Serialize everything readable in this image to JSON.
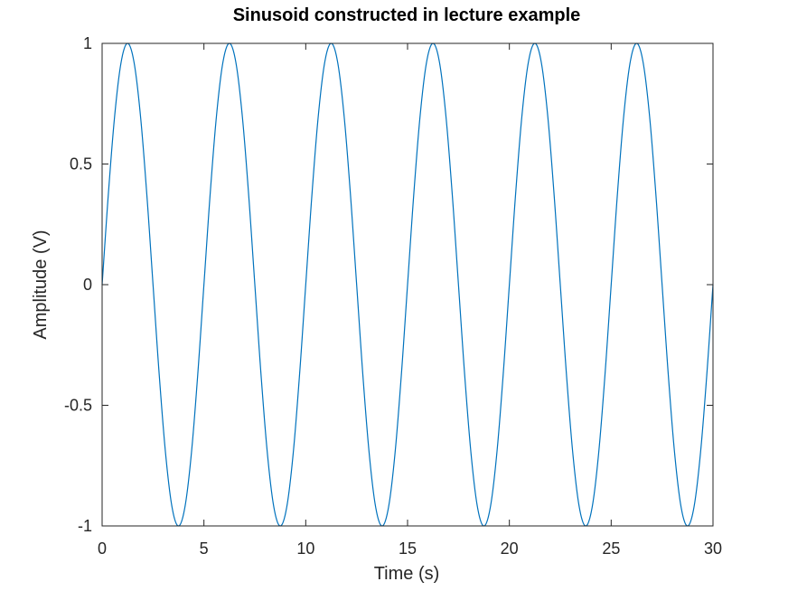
{
  "chart_data": {
    "type": "line",
    "title": "Sinusoid constructed in lecture example",
    "xlabel": "Time (s)",
    "ylabel": "Amplitude (V)",
    "xlim": [
      0,
      30
    ],
    "ylim": [
      -1,
      1
    ],
    "xticks": [
      0,
      5,
      10,
      15,
      20,
      25,
      30
    ],
    "xtick_labels": [
      "0",
      "5",
      "10",
      "15",
      "20",
      "25",
      "30"
    ],
    "yticks": [
      1,
      0.5,
      0,
      -0.5,
      -1
    ],
    "ytick_labels": [
      "1",
      "0.5",
      "0",
      "-0.5",
      "-1"
    ],
    "grid": false,
    "legend": "none",
    "series": [
      {
        "color": "#0072bd",
        "x": [
          0,
          0.3125,
          0.625,
          0.9375,
          1.25,
          1.5625,
          1.875,
          2.1875,
          2.5,
          2.8125,
          3.125,
          3.4375,
          3.75,
          4.0625,
          4.375,
          4.6875,
          5,
          5.3125,
          5.625,
          5.9375,
          6.25,
          6.5625,
          6.875,
          7.1875,
          7.5,
          7.8125,
          8.125,
          8.4375,
          8.75,
          9.0625,
          9.375,
          9.6875,
          10,
          10.3125,
          10.625,
          10.9375,
          11.25,
          11.5625,
          11.875,
          12.1875,
          12.5,
          12.8125,
          13.125,
          13.4375,
          13.75,
          14.0625,
          14.375,
          14.6875,
          15,
          15.3125,
          15.625,
          15.9375,
          16.25,
          16.5625,
          16.875,
          17.1875,
          17.5,
          17.8125,
          18.125,
          18.4375,
          18.75,
          19.0625,
          19.375,
          19.6875,
          20,
          20.3125,
          20.625,
          20.9375,
          21.25,
          21.5625,
          21.875,
          22.1875,
          22.5,
          22.8125,
          23.125,
          23.4375,
          23.75,
          24.0625,
          24.375,
          24.6875,
          25,
          25.3125,
          25.625,
          25.9375,
          26.25,
          26.5625,
          26.875,
          27.1875,
          27.5,
          27.8125,
          28.125,
          28.4375,
          28.75,
          29.0625,
          29.375,
          29.6875,
          30
        ],
        "y": [
          0,
          0.3827,
          0.7071,
          0.9239,
          1,
          0.9239,
          0.7071,
          0.3827,
          0,
          -0.3827,
          -0.7071,
          -0.9239,
          -1,
          -0.9239,
          -0.7071,
          -0.3827,
          0,
          0.3827,
          0.7071,
          0.9239,
          1,
          0.9239,
          0.7071,
          0.3827,
          0,
          -0.3827,
          -0.7071,
          -0.9239,
          -1,
          -0.9239,
          -0.7071,
          -0.3827,
          0,
          0.3827,
          0.7071,
          0.9239,
          1,
          0.9239,
          0.7071,
          0.3827,
          0,
          -0.3827,
          -0.7071,
          -0.9239,
          -1,
          -0.9239,
          -0.7071,
          -0.3827,
          0,
          0.3827,
          0.7071,
          0.9239,
          1,
          0.9239,
          0.7071,
          0.3827,
          0,
          -0.3827,
          -0.7071,
          -0.9239,
          -1,
          -0.9239,
          -0.7071,
          -0.3827,
          0,
          0.3827,
          0.7071,
          0.9239,
          1,
          0.9239,
          0.7071,
          0.3827,
          0,
          -0.3827,
          -0.7071,
          -0.9239,
          -1,
          -0.9239,
          -0.7071,
          -0.3827,
          0,
          0.3827,
          0.7071,
          0.9239,
          1,
          0.9239,
          0.7071,
          0.3827,
          0,
          -0.3827,
          -0.7071,
          -0.9239,
          -1,
          -0.9239,
          -0.7071,
          -0.3827,
          0
        ]
      }
    ]
  }
}
